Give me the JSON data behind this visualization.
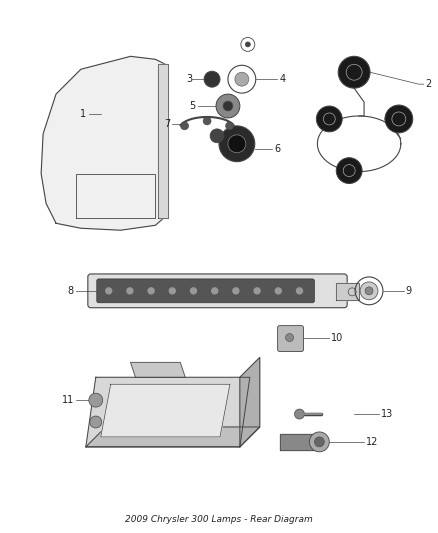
{
  "title": "2009 Chrysler 300 Lamps - Rear Diagram",
  "background_color": "#ffffff",
  "line_color": "#444444",
  "text_color": "#222222",
  "part_fontsize": 7.0
}
